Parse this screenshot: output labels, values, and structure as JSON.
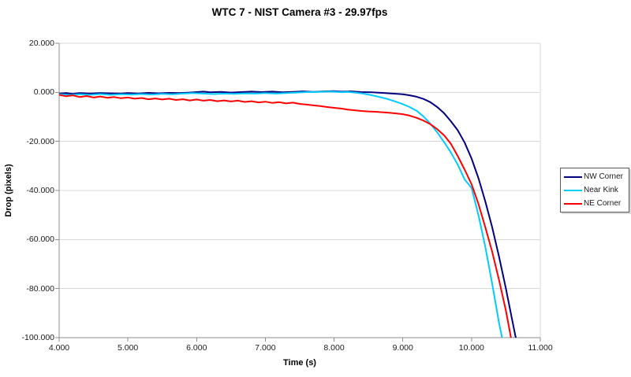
{
  "chart_data": {
    "type": "line",
    "title": "WTC 7 - NIST Camera #3 - 29.97fps",
    "xlabel": "Time (s)",
    "ylabel": "Drop (pixels)",
    "xlim": [
      4.0,
      11.0
    ],
    "ylim": [
      -100.0,
      20.0
    ],
    "x_ticks": [
      4,
      5,
      6,
      7,
      8,
      9,
      10,
      11
    ],
    "x_tick_labels": [
      "4.000",
      "5.000",
      "6.000",
      "7.000",
      "8.000",
      "9.000",
      "10.000",
      "11.000"
    ],
    "y_ticks": [
      20,
      0,
      -20,
      -40,
      -60,
      -80,
      -100
    ],
    "y_tick_labels": [
      "20.000",
      "0.000",
      "-20.000",
      "-40.000",
      "-60.000",
      "-80.000",
      "-100.000"
    ],
    "grid": "horizontal-only",
    "legend_position": "right",
    "colors": {
      "grid": "#d8d8d8",
      "axis": "#8c8c8c",
      "tick_text": "#1a1a1a",
      "background": "#ffffff"
    },
    "series": [
      {
        "name": "NW Corner",
        "color": "#000080",
        "points": [
          [
            4.0,
            -0.5
          ],
          [
            4.1,
            -0.3
          ],
          [
            4.2,
            -0.6
          ],
          [
            4.3,
            -0.3
          ],
          [
            4.45,
            -0.5
          ],
          [
            4.6,
            -0.3
          ],
          [
            4.75,
            -0.4
          ],
          [
            4.9,
            -0.5
          ],
          [
            5.0,
            -0.3
          ],
          [
            5.15,
            -0.5
          ],
          [
            5.3,
            -0.2
          ],
          [
            5.45,
            -0.4
          ],
          [
            5.6,
            -0.2
          ],
          [
            5.75,
            -0.3
          ],
          [
            5.9,
            -0.1
          ],
          [
            6.0,
            0.1
          ],
          [
            6.1,
            0.3
          ],
          [
            6.2,
            0.0
          ],
          [
            6.35,
            0.2
          ],
          [
            6.5,
            -0.1
          ],
          [
            6.65,
            0.1
          ],
          [
            6.8,
            0.3
          ],
          [
            6.95,
            0.1
          ],
          [
            7.1,
            0.3
          ],
          [
            7.25,
            0.0
          ],
          [
            7.4,
            0.2
          ],
          [
            7.55,
            0.4
          ],
          [
            7.7,
            0.2
          ],
          [
            7.85,
            0.4
          ],
          [
            8.0,
            0.5
          ],
          [
            8.1,
            0.3
          ],
          [
            8.25,
            0.4
          ],
          [
            8.4,
            0.1
          ],
          [
            8.55,
            0.0
          ],
          [
            8.7,
            -0.2
          ],
          [
            8.85,
            -0.5
          ],
          [
            9.0,
            -0.8
          ],
          [
            9.1,
            -1.2
          ],
          [
            9.2,
            -1.8
          ],
          [
            9.3,
            -2.7
          ],
          [
            9.4,
            -4.0
          ],
          [
            9.5,
            -6.0
          ],
          [
            9.6,
            -8.5
          ],
          [
            9.7,
            -11.8
          ],
          [
            9.8,
            -15.5
          ],
          [
            9.9,
            -20.5
          ],
          [
            10.0,
            -27.0
          ],
          [
            10.1,
            -35.0
          ],
          [
            10.2,
            -44.5
          ],
          [
            10.3,
            -55.0
          ],
          [
            10.4,
            -67.0
          ],
          [
            10.5,
            -80.0
          ],
          [
            10.6,
            -94.0
          ],
          [
            10.65,
            -101.0
          ]
        ]
      },
      {
        "name": "Near Kink",
        "color": "#00ccff",
        "points": [
          [
            4.0,
            -0.8
          ],
          [
            4.15,
            -1.1
          ],
          [
            4.3,
            -0.8
          ],
          [
            4.45,
            -1.0
          ],
          [
            4.6,
            -0.7
          ],
          [
            4.75,
            -1.0
          ],
          [
            4.9,
            -0.8
          ],
          [
            5.05,
            -0.9
          ],
          [
            5.2,
            -0.7
          ],
          [
            5.35,
            -0.9
          ],
          [
            5.5,
            -0.6
          ],
          [
            5.65,
            -0.8
          ],
          [
            5.8,
            -0.5
          ],
          [
            5.95,
            -0.3
          ],
          [
            6.1,
            -0.5
          ],
          [
            6.25,
            -0.7
          ],
          [
            6.4,
            -0.5
          ],
          [
            6.55,
            -0.6
          ],
          [
            6.7,
            -0.4
          ],
          [
            6.85,
            -0.5
          ],
          [
            7.0,
            -0.3
          ],
          [
            7.15,
            -0.5
          ],
          [
            7.3,
            -0.3
          ],
          [
            7.45,
            -0.1
          ],
          [
            7.6,
            0.1
          ],
          [
            7.75,
            0.2
          ],
          [
            7.9,
            0.3
          ],
          [
            8.0,
            0.3
          ],
          [
            8.1,
            0.1
          ],
          [
            8.2,
            0.2
          ],
          [
            8.3,
            -0.1
          ],
          [
            8.4,
            -0.4
          ],
          [
            8.5,
            -0.9
          ],
          [
            8.6,
            -1.5
          ],
          [
            8.75,
            -2.5
          ],
          [
            8.9,
            -3.8
          ],
          [
            9.0,
            -4.8
          ],
          [
            9.1,
            -6.0
          ],
          [
            9.2,
            -7.5
          ],
          [
            9.3,
            -9.8
          ],
          [
            9.4,
            -12.8
          ],
          [
            9.5,
            -16.3
          ],
          [
            9.6,
            -20.3
          ],
          [
            9.7,
            -24.5
          ],
          [
            9.8,
            -29.5
          ],
          [
            9.9,
            -35.5
          ],
          [
            10.0,
            -39.0
          ],
          [
            10.1,
            -50.0
          ],
          [
            10.2,
            -63.0
          ],
          [
            10.3,
            -78.0
          ],
          [
            10.4,
            -94.0
          ],
          [
            10.45,
            -101.0
          ]
        ]
      },
      {
        "name": "NE Corner",
        "color": "#ff0000",
        "points": [
          [
            4.0,
            -1.0
          ],
          [
            4.1,
            -1.6
          ],
          [
            4.2,
            -1.2
          ],
          [
            4.3,
            -1.9
          ],
          [
            4.4,
            -1.5
          ],
          [
            4.5,
            -2.1
          ],
          [
            4.6,
            -1.7
          ],
          [
            4.7,
            -2.2
          ],
          [
            4.8,
            -1.9
          ],
          [
            4.9,
            -2.4
          ],
          [
            5.0,
            -2.1
          ],
          [
            5.1,
            -2.6
          ],
          [
            5.2,
            -2.3
          ],
          [
            5.3,
            -2.8
          ],
          [
            5.4,
            -2.5
          ],
          [
            5.5,
            -2.9
          ],
          [
            5.6,
            -2.6
          ],
          [
            5.7,
            -3.1
          ],
          [
            5.8,
            -2.8
          ],
          [
            5.9,
            -3.3
          ],
          [
            6.0,
            -2.9
          ],
          [
            6.1,
            -3.4
          ],
          [
            6.2,
            -3.1
          ],
          [
            6.3,
            -3.6
          ],
          [
            6.4,
            -3.3
          ],
          [
            6.5,
            -3.7
          ],
          [
            6.6,
            -3.4
          ],
          [
            6.7,
            -3.9
          ],
          [
            6.8,
            -3.6
          ],
          [
            6.9,
            -4.1
          ],
          [
            7.0,
            -3.8
          ],
          [
            7.1,
            -4.3
          ],
          [
            7.2,
            -4.0
          ],
          [
            7.3,
            -4.5
          ],
          [
            7.4,
            -4.2
          ],
          [
            7.5,
            -4.7
          ],
          [
            7.6,
            -5.0
          ],
          [
            7.7,
            -5.3
          ],
          [
            7.8,
            -5.6
          ],
          [
            7.9,
            -6.0
          ],
          [
            8.0,
            -6.3
          ],
          [
            8.1,
            -6.6
          ],
          [
            8.2,
            -7.0
          ],
          [
            8.3,
            -7.3
          ],
          [
            8.4,
            -7.6
          ],
          [
            8.5,
            -7.8
          ],
          [
            8.6,
            -7.9
          ],
          [
            8.7,
            -8.1
          ],
          [
            8.8,
            -8.3
          ],
          [
            8.9,
            -8.6
          ],
          [
            9.0,
            -8.9
          ],
          [
            9.1,
            -9.5
          ],
          [
            9.2,
            -10.4
          ],
          [
            9.3,
            -11.5
          ],
          [
            9.4,
            -13.0
          ],
          [
            9.5,
            -15.0
          ],
          [
            9.6,
            -17.5
          ],
          [
            9.7,
            -21.0
          ],
          [
            9.8,
            -26.0
          ],
          [
            9.9,
            -31.5
          ],
          [
            10.0,
            -37.5
          ],
          [
            10.1,
            -45.5
          ],
          [
            10.2,
            -55.0
          ],
          [
            10.3,
            -65.0
          ],
          [
            10.4,
            -76.5
          ],
          [
            10.5,
            -89.0
          ],
          [
            10.58,
            -101.0
          ]
        ]
      }
    ]
  }
}
